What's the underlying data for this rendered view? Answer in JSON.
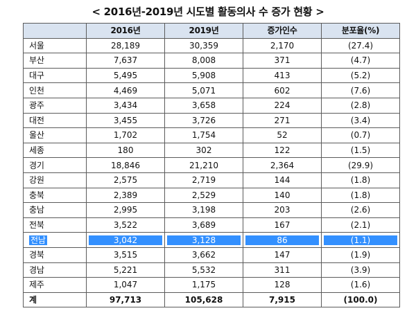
{
  "title": "< 2016년-2019년 시도별 활동의사 수 증가 현황 >",
  "table": {
    "columns": [
      "",
      "2016년",
      "2019년",
      "증가인수",
      "분포율(%)"
    ],
    "rows": [
      {
        "region": "서울",
        "y2016": "28,189",
        "y2019": "30,359",
        "increase": "2,170",
        "share": "(27.4)"
      },
      {
        "region": "부산",
        "y2016": "7,637",
        "y2019": "8,008",
        "increase": "371",
        "share": "(4.7)"
      },
      {
        "region": "대구",
        "y2016": "5,495",
        "y2019": "5,908",
        "increase": "413",
        "share": "(5.2)"
      },
      {
        "region": "인천",
        "y2016": "4,469",
        "y2019": "5,071",
        "increase": "602",
        "share": "(7.6)"
      },
      {
        "region": "광주",
        "y2016": "3,434",
        "y2019": "3,658",
        "increase": "224",
        "share": "(2.8)"
      },
      {
        "region": "대전",
        "y2016": "3,455",
        "y2019": "3,726",
        "increase": "271",
        "share": "(3.4)"
      },
      {
        "region": "울산",
        "y2016": "1,702",
        "y2019": "1,754",
        "increase": "52",
        "share": "(0.7)"
      },
      {
        "region": "세종",
        "y2016": "180",
        "y2019": "302",
        "increase": "122",
        "share": "(1.5)"
      },
      {
        "region": "경기",
        "y2016": "18,846",
        "y2019": "21,210",
        "increase": "2,364",
        "share": "(29.9)"
      },
      {
        "region": "강원",
        "y2016": "2,575",
        "y2019": "2,719",
        "increase": "144",
        "share": "(1.8)"
      },
      {
        "region": "충북",
        "y2016": "2,389",
        "y2019": "2,529",
        "increase": "140",
        "share": "(1.8)"
      },
      {
        "region": "충남",
        "y2016": "2,995",
        "y2019": "3,198",
        "increase": "203",
        "share": "(2.6)"
      },
      {
        "region": "전북",
        "y2016": "3,522",
        "y2019": "3,689",
        "increase": "167",
        "share": "(2.1)"
      },
      {
        "region": "전남",
        "y2016": "3,042",
        "y2019": "3,128",
        "increase": "86",
        "share": "(1.1)",
        "selected": true
      },
      {
        "region": "경북",
        "y2016": "3,515",
        "y2019": "3,662",
        "increase": "147",
        "share": "(1.9)"
      },
      {
        "region": "경남",
        "y2016": "5,221",
        "y2019": "5,532",
        "increase": "311",
        "share": "(3.9)"
      },
      {
        "region": "제주",
        "y2016": "1,047",
        "y2019": "1,175",
        "increase": "128",
        "share": "(1.6)"
      }
    ],
    "total": {
      "region": "계",
      "y2016": "97,713",
      "y2019": "105,628",
      "increase": "7,915",
      "share": "(100.0)"
    }
  },
  "colors": {
    "header_fill": "#d9e3f0",
    "selection_highlight": "#3390ff",
    "grid_line": "#5a5a5a"
  }
}
